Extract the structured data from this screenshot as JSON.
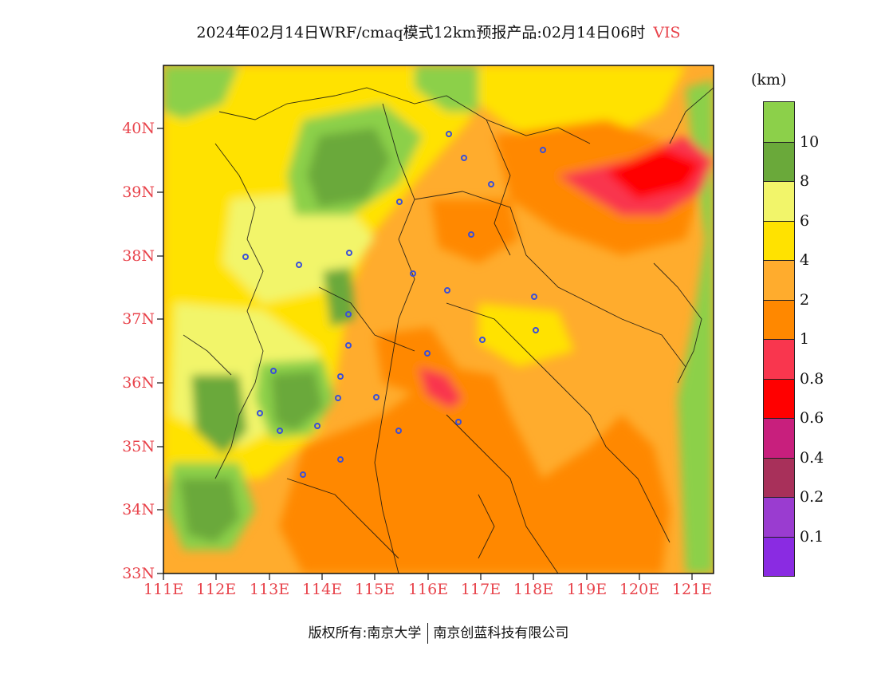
{
  "title": {
    "main": "2024年02月14日WRF/cmaq模式12km预报产品:02月14日06时",
    "variable": "VIS"
  },
  "map": {
    "lat_labels": [
      "40N",
      "39N",
      "38N",
      "37N",
      "36N",
      "35N",
      "34N",
      "33N"
    ],
    "lon_labels": [
      "111E",
      "112E",
      "113E",
      "114E",
      "115E",
      "116E",
      "117E",
      "118E",
      "119E",
      "120E",
      "121E"
    ],
    "lat_range": [
      33,
      41
    ],
    "lon_range": [
      111,
      121.5
    ],
    "city_marker_color": "#3a4fd8"
  },
  "colorbar": {
    "unit": "(km)",
    "bands": [
      {
        "color": "#8cd04a",
        "label": "10"
      },
      {
        "color": "#6aa93a",
        "label": "8"
      },
      {
        "color": "#f2f56a",
        "label": "6"
      },
      {
        "color": "#ffe200",
        "label": "4"
      },
      {
        "color": "#ffac2d",
        "label": "2"
      },
      {
        "color": "#ff8800",
        "label": "1"
      },
      {
        "color": "#f9364e",
        "label": "0.8"
      },
      {
        "color": "#ff0000",
        "label": "0.6"
      },
      {
        "color": "#c81f7d",
        "label": "0.4"
      },
      {
        "color": "#a8305a",
        "label": "0.2"
      },
      {
        "color": "#9a3cd0",
        "label": "0.1"
      },
      {
        "color": "#8a2be2",
        "label": ""
      }
    ]
  },
  "footer": {
    "left": "版权所有:南京大学",
    "right": "南京创蓝科技有限公司"
  }
}
